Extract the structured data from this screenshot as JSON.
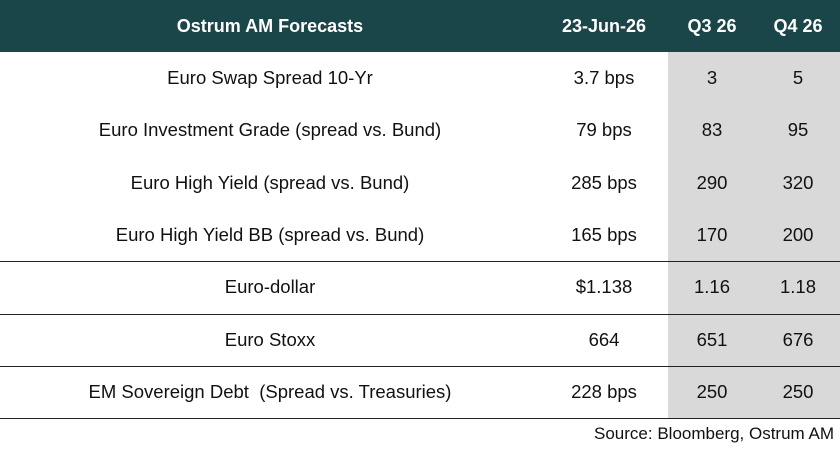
{
  "table": {
    "header": [
      "Ostrum AM Forecasts",
      "23-Jun-26",
      "Q3 26",
      "Q4 26"
    ],
    "rows": [
      [
        "Euro Swap Spread 10-Yr",
        "3.7 bps",
        "3",
        "5"
      ],
      [
        "Euro Investment Grade (spread vs. Bund)",
        "79 bps",
        "83",
        "95"
      ],
      [
        "Euro High Yield (spread vs. Bund)",
        "285 bps",
        "290",
        "320"
      ],
      [
        "Euro High Yield BB (spread vs. Bund)",
        "165 bps",
        "170",
        "200"
      ],
      [
        "Euro-dollar",
        "$1.138",
        "1.16",
        "1.18"
      ],
      [
        "Euro Stoxx",
        "664",
        "651",
        "676"
      ],
      [
        "EM Sovereign Debt  (Spread vs. Treasuries)",
        "228 bps",
        "250",
        "250"
      ]
    ],
    "source": "Source: Bloomberg, Ostrum AM"
  }
}
